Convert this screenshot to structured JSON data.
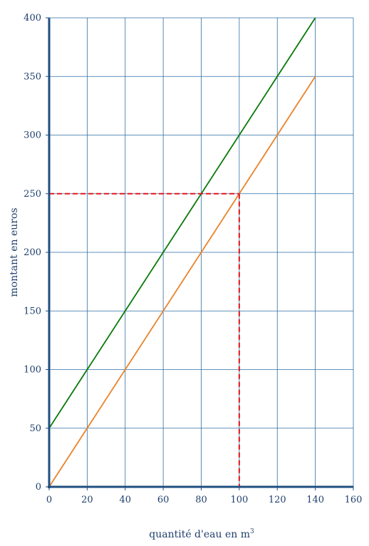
{
  "chart_data": {
    "type": "line",
    "xlabel": "quantité d'eau en m",
    "xlabel_superscript": "3",
    "ylabel": "montant en euros",
    "xlim": [
      0,
      160
    ],
    "ylim": [
      0,
      400
    ],
    "xticks": [
      0,
      20,
      40,
      60,
      80,
      100,
      120,
      140,
      160
    ],
    "yticks": [
      0,
      50,
      100,
      150,
      200,
      250,
      300,
      350,
      400
    ],
    "grid": true,
    "series": [
      {
        "color": "#0a7a0a",
        "x": [
          0,
          140
        ],
        "y": [
          50,
          400
        ]
      },
      {
        "color": "#e8832a",
        "x": [
          0,
          140
        ],
        "y": [
          0,
          350
        ]
      }
    ],
    "reference_lines": {
      "color": "#e8141c",
      "point": {
        "x": 100,
        "y": 250
      }
    },
    "colors": {
      "grid": "#2f6ea3",
      "axis": "#1f4f80",
      "text": "#1f3f6b"
    }
  }
}
